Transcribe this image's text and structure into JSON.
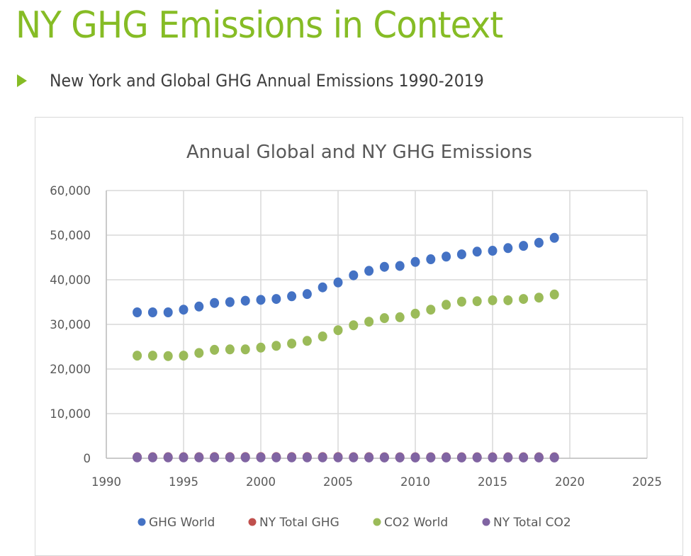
{
  "slide": {
    "title": "NY GHG Emissions in Context",
    "bullet": "New York and Global GHG Annual Emissions 1990-2019",
    "accent_color": "#86bc25"
  },
  "chart_data": {
    "type": "scatter",
    "title": "Annual Global and NY GHG Emissions",
    "xlabel": "",
    "ylabel": "",
    "xlim": [
      1990,
      2025
    ],
    "ylim": [
      0,
      60000
    ],
    "x_ticks": [
      "1990",
      "1995",
      "2000",
      "2005",
      "2010",
      "2015",
      "2020",
      "2025"
    ],
    "y_ticks": [
      "0",
      "10,000",
      "20,000",
      "30,000",
      "40,000",
      "50,000",
      "60,000"
    ],
    "grid": true,
    "legend_position": "bottom",
    "x": [
      1992,
      1993,
      1994,
      1995,
      1996,
      1997,
      1998,
      1999,
      2000,
      2001,
      2002,
      2003,
      2004,
      2005,
      2006,
      2007,
      2008,
      2009,
      2010,
      2011,
      2012,
      2013,
      2014,
      2015,
      2016,
      2017,
      2018,
      2019
    ],
    "series": [
      {
        "name": "GHG World",
        "color": "#4472c4",
        "values": [
          32700,
          32700,
          32700,
          33300,
          34000,
          34800,
          35000,
          35300,
          35500,
          35700,
          36300,
          36800,
          38300,
          39400,
          41000,
          42000,
          42900,
          43100,
          44000,
          44600,
          45200,
          45700,
          46300,
          46500,
          47100,
          47600,
          48300,
          49400
        ]
      },
      {
        "name": "NY Total GHG",
        "color": "#c0504d",
        "values": [
          230,
          230,
          230,
          230,
          240,
          260,
          260,
          260,
          260,
          260,
          260,
          260,
          260,
          260,
          240,
          230,
          220,
          220,
          220,
          220,
          210,
          210,
          210,
          210,
          210,
          210,
          210,
          210
        ]
      },
      {
        "name": "CO2 World",
        "color": "#9bbb59",
        "values": [
          23000,
          23000,
          22900,
          23000,
          23600,
          24300,
          24400,
          24400,
          24800,
          25200,
          25700,
          26300,
          27300,
          28700,
          29800,
          30600,
          31400,
          31600,
          32400,
          33300,
          34400,
          35100,
          35200,
          35400,
          35400,
          35700,
          36000,
          36700
        ]
      },
      {
        "name": "NY Total CO2",
        "color": "#8064a2",
        "values": [
          190,
          190,
          190,
          190,
          190,
          200,
          200,
          200,
          200,
          200,
          200,
          200,
          200,
          200,
          190,
          180,
          180,
          180,
          180,
          180,
          170,
          170,
          170,
          170,
          170,
          170,
          170,
          170
        ]
      }
    ]
  }
}
